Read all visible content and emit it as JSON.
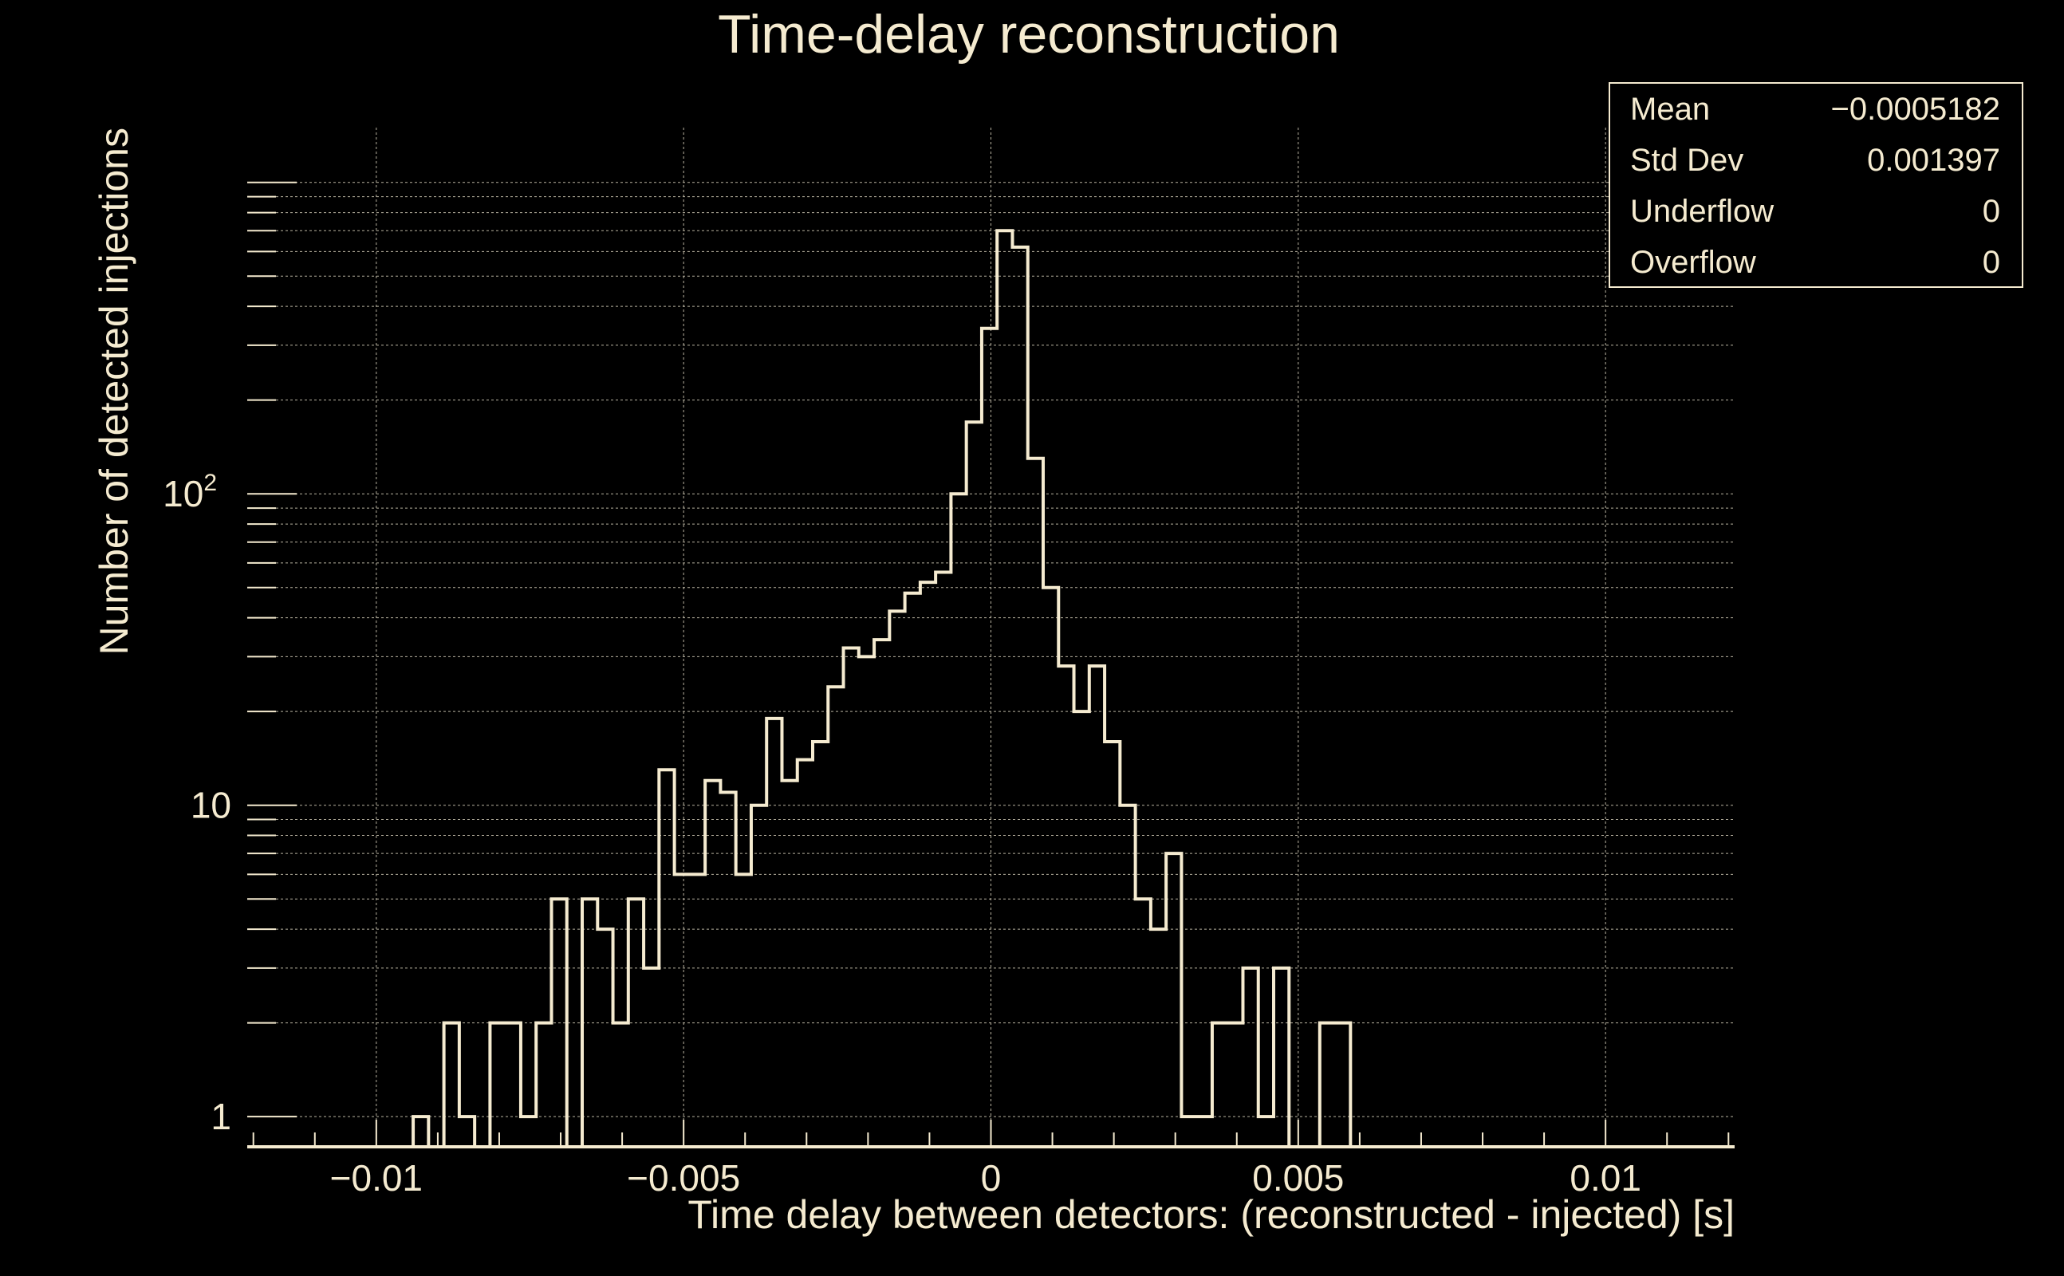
{
  "chart_data": {
    "type": "bar",
    "subtype": "histogram",
    "title": "Time-delay reconstruction",
    "xlabel": "Time delay between detectors: (reconstructed - injected) [s]",
    "ylabel": "Number of detected injections",
    "xlim": [
      -0.0121,
      0.0121
    ],
    "ylim": [
      0.8,
      1500
    ],
    "yscale": "log",
    "grid": true,
    "x_ticks": [
      {
        "value": -0.01,
        "label": "−0.01"
      },
      {
        "value": -0.005,
        "label": "−0.005"
      },
      {
        "value": 0,
        "label": "0"
      },
      {
        "value": 0.005,
        "label": "0.005"
      },
      {
        "value": 0.01,
        "label": "0.01"
      }
    ],
    "y_ticks": [
      {
        "value": 1,
        "label": "1"
      },
      {
        "value": 10,
        "label": "10"
      },
      {
        "value": 100,
        "label": "10",
        "sup": "2"
      }
    ],
    "bin_width": 0.00025,
    "bins_start": -0.0094,
    "values": [
      1,
      0,
      2,
      1,
      0,
      2,
      2,
      1,
      2,
      5,
      0,
      5,
      4,
      2,
      5,
      3,
      13,
      6,
      6,
      12,
      11,
      6,
      10,
      19,
      12,
      14,
      16,
      24,
      32,
      30,
      34,
      42,
      48,
      52,
      56,
      100,
      170,
      340,
      700,
      620,
      130,
      50,
      28,
      20,
      28,
      16,
      10,
      5,
      4,
      7,
      1,
      1,
      2,
      2,
      3,
      1,
      3,
      0,
      0,
      2,
      2
    ],
    "line_color": "#f5ebd0",
    "background_color": "#000000",
    "grid_color": "#b8b2a0"
  },
  "stats_box": {
    "rows": [
      {
        "label": "Mean",
        "value": "−0.0005182"
      },
      {
        "label": "Std Dev",
        "value": "0.001397"
      },
      {
        "label": "Underflow",
        "value": "0"
      },
      {
        "label": "Overflow",
        "value": "0"
      }
    ]
  }
}
